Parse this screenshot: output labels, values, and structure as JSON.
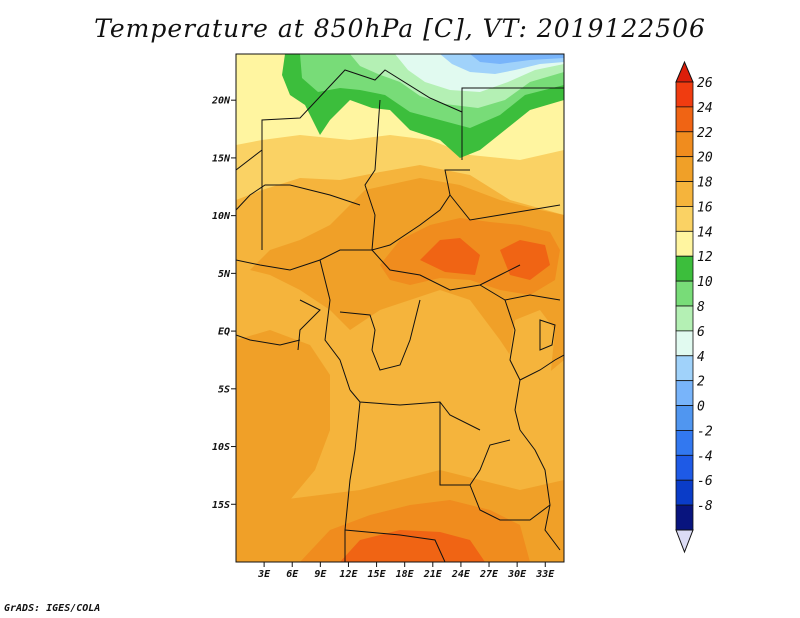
{
  "title": "Temperature at 850hPa [C], VT: 2019122506",
  "credit": "GrADS: IGES/COLA",
  "map": {
    "lon_range": [
      0,
      35
    ],
    "lat_range": [
      -20,
      24
    ],
    "lat_ticks": [
      {
        "value": 20,
        "label": "20N"
      },
      {
        "value": 15,
        "label": "15N"
      },
      {
        "value": 10,
        "label": "10N"
      },
      {
        "value": 5,
        "label": "5N"
      },
      {
        "value": 0,
        "label": "EQ"
      },
      {
        "value": -5,
        "label": "5S"
      },
      {
        "value": -10,
        "label": "10S"
      },
      {
        "value": -15,
        "label": "15S"
      }
    ],
    "lon_ticks": [
      {
        "value": 3,
        "label": "3E"
      },
      {
        "value": 6,
        "label": "6E"
      },
      {
        "value": 9,
        "label": "9E"
      },
      {
        "value": 12,
        "label": "12E"
      },
      {
        "value": 15,
        "label": "15E"
      },
      {
        "value": 18,
        "label": "18E"
      },
      {
        "value": 21,
        "label": "21E"
      },
      {
        "value": 24,
        "label": "24E"
      },
      {
        "value": 27,
        "label": "27E"
      },
      {
        "value": 30,
        "label": "30E"
      },
      {
        "value": 33,
        "label": "33E"
      }
    ]
  },
  "colorbar": {
    "levels": [
      "26",
      "24",
      "22",
      "20",
      "18",
      "16",
      "14",
      "12",
      "10",
      "8",
      "6",
      "4",
      "2",
      "0",
      "-2",
      "-4",
      "-6",
      "-8"
    ],
    "colors_top_down": [
      "#f03c10",
      "#f06414",
      "#f08c1e",
      "#f0a028",
      "#f5b43c",
      "#fad264",
      "#fff5a0",
      "#3cbe3c",
      "#78dc78",
      "#b4f0b4",
      "#e1faf0",
      "#a0d2fa",
      "#78b4fa",
      "#5096f0",
      "#3278f0",
      "#1e5ae6",
      "#0a3cc8",
      "#08147e"
    ],
    "overflow_high": "#dc1e0a",
    "overflow_low": "#dcdcf5"
  }
}
